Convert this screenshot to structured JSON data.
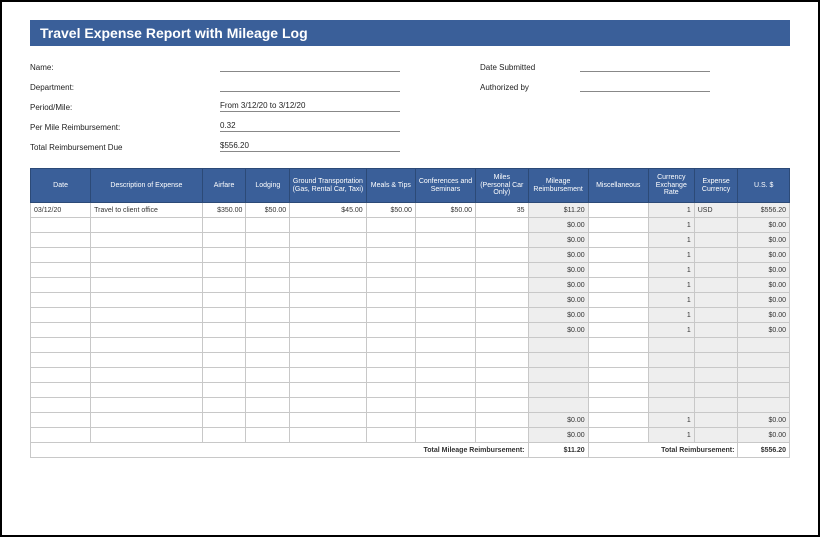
{
  "title": "Travel Expense Report with Mileage Log",
  "meta": {
    "name_label": "Name:",
    "name_value": "",
    "dept_label": "Department:",
    "dept_value": "",
    "period_label": "Period/Mile:",
    "period_value": "From 3/12/20 to 3/12/20",
    "permile_label": "Per Mile Reimbursement:",
    "permile_value": "0.32",
    "totaldue_label": "Total Reimbursement Due",
    "totaldue_value": "$556.20",
    "date_sub_label": "Date Submitted",
    "date_sub_value": "",
    "auth_label": "Authorized by",
    "auth_value": ""
  },
  "columns": [
    "Date",
    "Description of Expense",
    "Airfare",
    "Lodging",
    "Ground Transportation (Gas, Rental Car, Taxi)",
    "Meals & Tips",
    "Conferences and Seminars",
    "Miles (Personal Car Only)",
    "Mileage Reimbursement",
    "Miscellaneous",
    "Currency Exchange Rate",
    "Expense Currency",
    "U.S. $"
  ],
  "rows": [
    {
      "date": "03/12/20",
      "desc": "Travel to client office",
      "airfare": "$350.00",
      "lodging": "$50.00",
      "ground": "$45.00",
      "meals": "$50.00",
      "conf": "$50.00",
      "miles": "35",
      "reimb": "$11.20",
      "misc": "",
      "rate": "1",
      "curr": "USD",
      "usd": "$556.20"
    },
    {
      "date": "",
      "desc": "",
      "airfare": "",
      "lodging": "",
      "ground": "",
      "meals": "",
      "conf": "",
      "miles": "",
      "reimb": "$0.00",
      "misc": "",
      "rate": "1",
      "curr": "",
      "usd": "$0.00"
    },
    {
      "date": "",
      "desc": "",
      "airfare": "",
      "lodging": "",
      "ground": "",
      "meals": "",
      "conf": "",
      "miles": "",
      "reimb": "$0.00",
      "misc": "",
      "rate": "1",
      "curr": "",
      "usd": "$0.00"
    },
    {
      "date": "",
      "desc": "",
      "airfare": "",
      "lodging": "",
      "ground": "",
      "meals": "",
      "conf": "",
      "miles": "",
      "reimb": "$0.00",
      "misc": "",
      "rate": "1",
      "curr": "",
      "usd": "$0.00"
    },
    {
      "date": "",
      "desc": "",
      "airfare": "",
      "lodging": "",
      "ground": "",
      "meals": "",
      "conf": "",
      "miles": "",
      "reimb": "$0.00",
      "misc": "",
      "rate": "1",
      "curr": "",
      "usd": "$0.00"
    },
    {
      "date": "",
      "desc": "",
      "airfare": "",
      "lodging": "",
      "ground": "",
      "meals": "",
      "conf": "",
      "miles": "",
      "reimb": "$0.00",
      "misc": "",
      "rate": "1",
      "curr": "",
      "usd": "$0.00"
    },
    {
      "date": "",
      "desc": "",
      "airfare": "",
      "lodging": "",
      "ground": "",
      "meals": "",
      "conf": "",
      "miles": "",
      "reimb": "$0.00",
      "misc": "",
      "rate": "1",
      "curr": "",
      "usd": "$0.00"
    },
    {
      "date": "",
      "desc": "",
      "airfare": "",
      "lodging": "",
      "ground": "",
      "meals": "",
      "conf": "",
      "miles": "",
      "reimb": "$0.00",
      "misc": "",
      "rate": "1",
      "curr": "",
      "usd": "$0.00"
    },
    {
      "date": "",
      "desc": "",
      "airfare": "",
      "lodging": "",
      "ground": "",
      "meals": "",
      "conf": "",
      "miles": "",
      "reimb": "$0.00",
      "misc": "",
      "rate": "1",
      "curr": "",
      "usd": "$0.00"
    },
    {
      "date": "",
      "desc": "",
      "airfare": "",
      "lodging": "",
      "ground": "",
      "meals": "",
      "conf": "",
      "miles": "",
      "reimb": "",
      "misc": "",
      "rate": "",
      "curr": "",
      "usd": ""
    },
    {
      "date": "",
      "desc": "",
      "airfare": "",
      "lodging": "",
      "ground": "",
      "meals": "",
      "conf": "",
      "miles": "",
      "reimb": "",
      "misc": "",
      "rate": "",
      "curr": "",
      "usd": ""
    },
    {
      "date": "",
      "desc": "",
      "airfare": "",
      "lodging": "",
      "ground": "",
      "meals": "",
      "conf": "",
      "miles": "",
      "reimb": "",
      "misc": "",
      "rate": "",
      "curr": "",
      "usd": ""
    },
    {
      "date": "",
      "desc": "",
      "airfare": "",
      "lodging": "",
      "ground": "",
      "meals": "",
      "conf": "",
      "miles": "",
      "reimb": "",
      "misc": "",
      "rate": "",
      "curr": "",
      "usd": ""
    },
    {
      "date": "",
      "desc": "",
      "airfare": "",
      "lodging": "",
      "ground": "",
      "meals": "",
      "conf": "",
      "miles": "",
      "reimb": "",
      "misc": "",
      "rate": "",
      "curr": "",
      "usd": ""
    },
    {
      "date": "",
      "desc": "",
      "airfare": "",
      "lodging": "",
      "ground": "",
      "meals": "",
      "conf": "",
      "miles": "",
      "reimb": "$0.00",
      "misc": "",
      "rate": "1",
      "curr": "",
      "usd": "$0.00"
    },
    {
      "date": "",
      "desc": "",
      "airfare": "",
      "lodging": "",
      "ground": "",
      "meals": "",
      "conf": "",
      "miles": "",
      "reimb": "$0.00",
      "misc": "",
      "rate": "1",
      "curr": "",
      "usd": "$0.00"
    }
  ],
  "totals": {
    "mileage_label": "Total Mileage Reimbursement:",
    "mileage_value": "$11.20",
    "reimb_label": "Total Reimbursement:",
    "reimb_value": "$556.20"
  },
  "style": {
    "header_bg": "#3a5f99",
    "header_fg": "#ffffff",
    "shade_bg": "#eeeeee",
    "border": "#c8c8c8"
  }
}
